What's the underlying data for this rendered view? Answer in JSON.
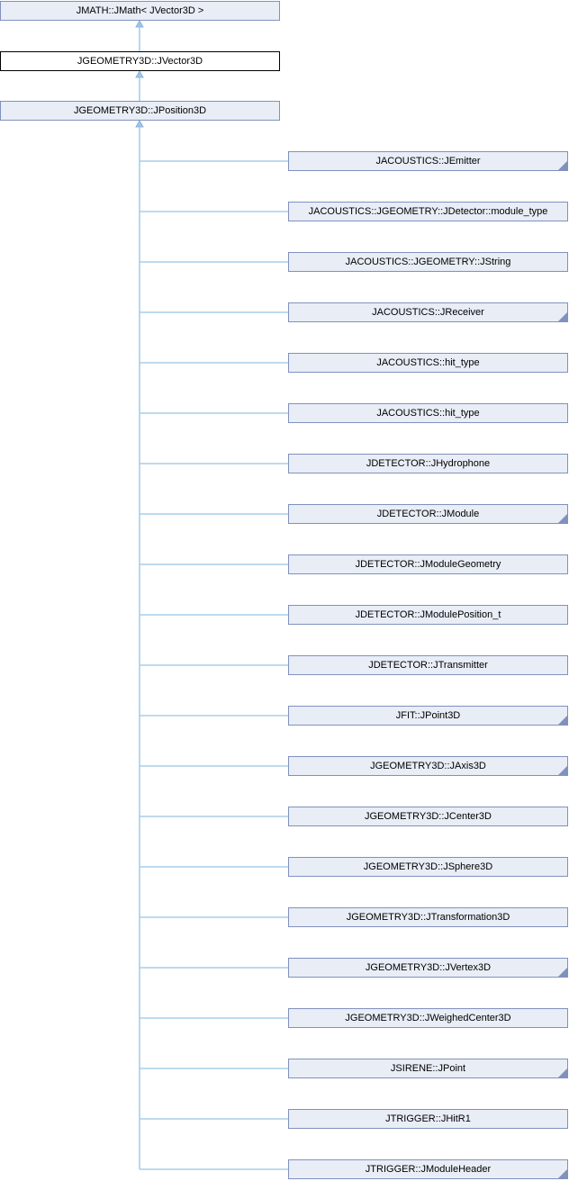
{
  "colors": {
    "background": "#FFFFFF",
    "node_fill": "#E8EDF6",
    "node_border": "#8191BE",
    "current_fill": "#FFFFFF",
    "current_border": "#000000",
    "edge_line": "#A9CDE9",
    "arrow_fill": "#9FC6E7",
    "arrow_stroke": "#8AB4DA",
    "text": "#000000"
  },
  "base_chain": [
    {
      "label": "JMATH::JMath< JVector3D >",
      "current": false
    },
    {
      "label": "JGEOMETRY3D::JVector3D",
      "current": true
    },
    {
      "label": "JGEOMETRY3D::JPosition3D",
      "current": false
    }
  ],
  "derived_classes": [
    {
      "label": "JACOUSTICS::JEmitter",
      "has_derived": true
    },
    {
      "label": "JACOUSTICS::JGEOMETRY::JDetector::module_type",
      "has_derived": false
    },
    {
      "label": "JACOUSTICS::JGEOMETRY::JString",
      "has_derived": false
    },
    {
      "label": "JACOUSTICS::JReceiver",
      "has_derived": true
    },
    {
      "label": "JACOUSTICS::hit_type",
      "has_derived": false
    },
    {
      "label": "JACOUSTICS::hit_type",
      "has_derived": false
    },
    {
      "label": "JDETECTOR::JHydrophone",
      "has_derived": false
    },
    {
      "label": "JDETECTOR::JModule",
      "has_derived": true
    },
    {
      "label": "JDETECTOR::JModuleGeometry",
      "has_derived": false
    },
    {
      "label": "JDETECTOR::JModulePosition_t",
      "has_derived": false
    },
    {
      "label": "JDETECTOR::JTransmitter",
      "has_derived": false
    },
    {
      "label": "JFIT::JPoint3D",
      "has_derived": true
    },
    {
      "label": "JGEOMETRY3D::JAxis3D",
      "has_derived": true
    },
    {
      "label": "JGEOMETRY3D::JCenter3D",
      "has_derived": false
    },
    {
      "label": "JGEOMETRY3D::JSphere3D",
      "has_derived": false
    },
    {
      "label": "JGEOMETRY3D::JTransformation3D",
      "has_derived": false
    },
    {
      "label": "JGEOMETRY3D::JVertex3D",
      "has_derived": true
    },
    {
      "label": "JGEOMETRY3D::JWeighedCenter3D",
      "has_derived": false
    },
    {
      "label": "JSIRENE::JPoint",
      "has_derived": true
    },
    {
      "label": "JTRIGGER::JHitR1",
      "has_derived": false
    },
    {
      "label": "JTRIGGER::JModuleHeader",
      "has_derived": true
    }
  ]
}
